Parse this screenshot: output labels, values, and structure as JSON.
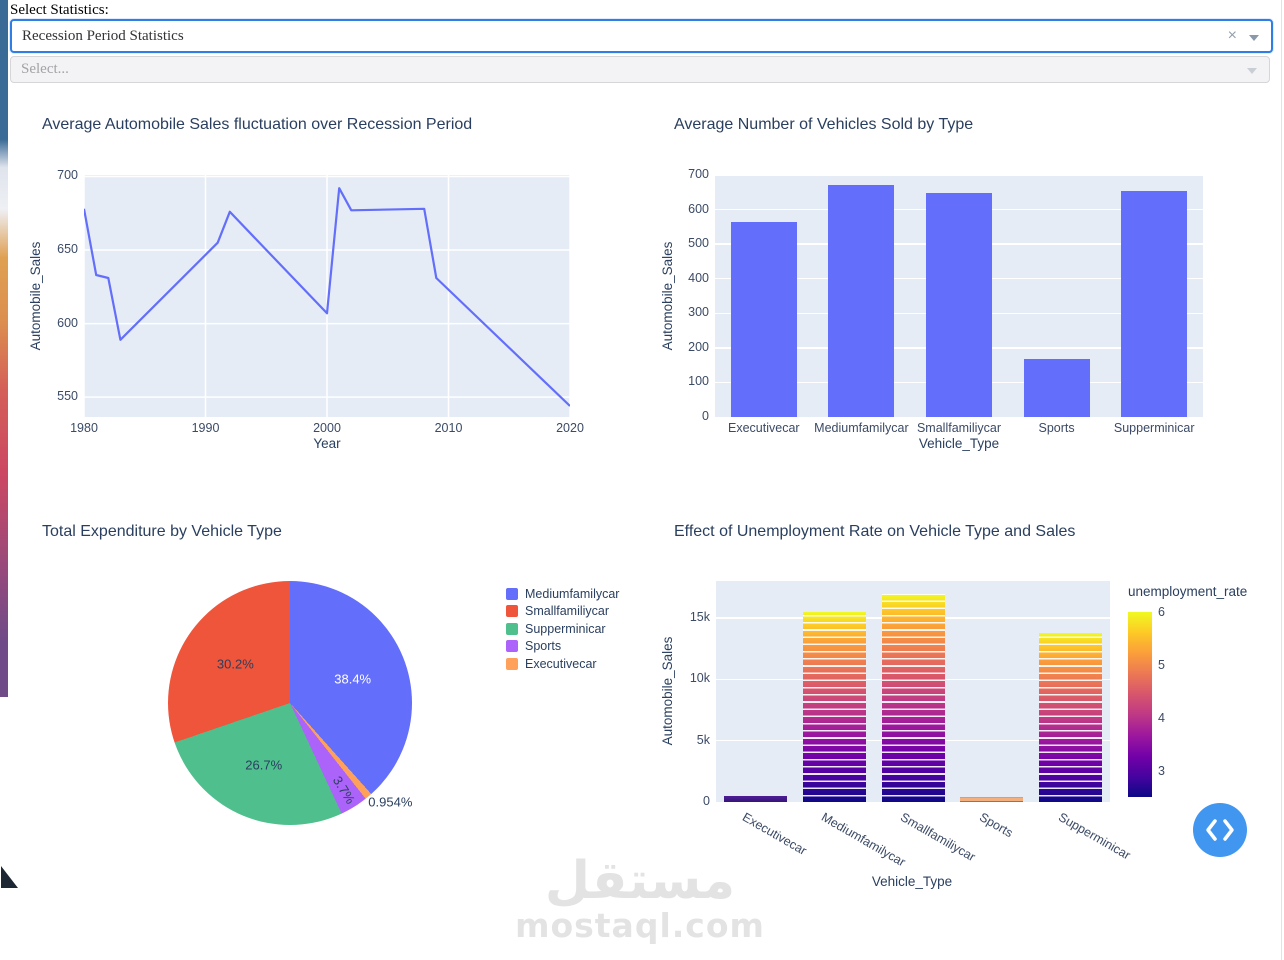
{
  "controls": {
    "label": "Select Statistics:",
    "statistics_dropdown": {
      "value": "Recession Period Statistics",
      "clear_icon": "×",
      "chevron_icon": "caret-down"
    },
    "year_dropdown": {
      "placeholder": "Select...",
      "chevron_icon": "caret-down"
    }
  },
  "colors": {
    "accent_blue": "#636efa",
    "plot_background": "#e5ecf6",
    "chart_text": "#2a3f5f",
    "nav_button_blue": "#4196f0",
    "dropdown_focus_border": "#2e7ee5"
  },
  "chart_data": [
    {
      "type": "line",
      "title": "Average Automobile Sales fluctuation over Recession Period",
      "xlabel": "Year",
      "ylabel": "Automobile_Sales",
      "x": [
        1980,
        1981,
        1982,
        1983,
        1991,
        1992,
        2000,
        2001,
        2002,
        2008,
        2009,
        2020
      ],
      "y": [
        678,
        633,
        631,
        589,
        655,
        676,
        607,
        692,
        677,
        678,
        631,
        544
      ],
      "xticks": [
        1980,
        1990,
        2000,
        2010,
        2020
      ],
      "yticks": [
        550,
        600,
        650,
        700
      ],
      "xlim": [
        1980,
        2020
      ],
      "ylim": [
        536.5,
        701
      ],
      "grid": true,
      "line_color": "#636efa"
    },
    {
      "type": "bar",
      "title": "Average Number of Vehicles Sold by Type",
      "xlabel": "Vehicle_Type",
      "ylabel": "Automobile_Sales",
      "categories": [
        "Executivecar",
        "Mediumfamilycar",
        "Smallfamiliycar",
        "Sports",
        "Supperminicar"
      ],
      "values": [
        563,
        672,
        649,
        168,
        655
      ],
      "yticks": [
        0,
        100,
        200,
        300,
        400,
        500,
        600,
        700
      ],
      "ylim": [
        0,
        700
      ],
      "grid": true,
      "bar_color": "#636efa"
    },
    {
      "type": "pie",
      "title": "Total Expenditure by Vehicle Type",
      "slices": [
        {
          "label": "Mediumfamilycar",
          "pct": 38.4,
          "display": "38.4%",
          "color": "#636efa"
        },
        {
          "label": "Smallfamiliycar",
          "pct": 30.2,
          "display": "30.2%",
          "color": "#ef553b"
        },
        {
          "label": "Supperminicar",
          "pct": 26.7,
          "display": "26.7%",
          "color": "#4fc08d"
        },
        {
          "label": "Sports",
          "pct": 3.7,
          "display": "3.7%",
          "color": "#ab63fa"
        },
        {
          "label": "Executivecar",
          "pct": 0.954,
          "display": "0.954%",
          "color": "#ffa15a"
        }
      ],
      "clockwise_order": [
        0,
        4,
        3,
        2,
        1
      ],
      "legend_position": "right"
    },
    {
      "type": "bar",
      "subtype": "stacked-colorscale",
      "title": "Effect of Unemployment Rate on Vehicle Type and Sales",
      "xlabel": "Vehicle_Type",
      "ylabel": "Automobile_Sales",
      "categories": [
        "Executivecar",
        "Mediumfamilycar",
        "Smallfamiliycar",
        "Sports",
        "Supperminicar"
      ],
      "totals": [
        500,
        15500,
        17000,
        400,
        13800
      ],
      "ytick_labels": [
        "0",
        "5k",
        "10k",
        "15k"
      ],
      "ytick_values": [
        0,
        5000,
        10000,
        15000
      ],
      "ylim": [
        0,
        18025
      ],
      "grid": true,
      "bar_styles": [
        "solid-dark-purple",
        "colorscale",
        "colorscale",
        "solid-peach",
        "colorscale"
      ],
      "colorbar": {
        "title": "unemployment_rate",
        "ticks": [
          6,
          5,
          4,
          3
        ],
        "min": 2.52,
        "max": 6.02,
        "colorscale": [
          "#0d0887",
          "#46039f",
          "#7201a8",
          "#9c179e",
          "#bd3786",
          "#d8576b",
          "#ed7953",
          "#fb9f3a",
          "#fdca26",
          "#f0f921"
        ]
      }
    }
  ],
  "nav_button": {
    "icon": "chevrons-left-right"
  },
  "watermark": {
    "arabic": "مستقل",
    "latin": "mostaql.com"
  }
}
